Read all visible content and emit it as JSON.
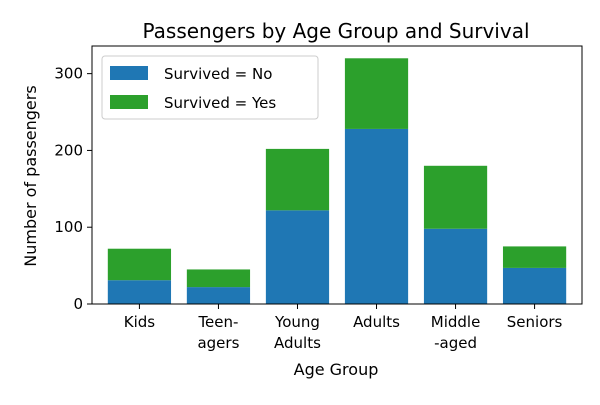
{
  "chart_data": {
    "type": "bar",
    "stacked": true,
    "title": "Passengers by Age Group and Survival",
    "xlabel": "Age Group",
    "ylabel": "Number of passengers",
    "categories": [
      [
        "Kids"
      ],
      [
        "Teen-",
        "agers"
      ],
      [
        "Young",
        "Adults"
      ],
      [
        "Adults"
      ],
      [
        "Middle",
        "-aged"
      ],
      [
        "Seniors"
      ]
    ],
    "series": [
      {
        "name": "Survived = No",
        "color": "#1f77b4",
        "values": [
          31,
          22,
          122,
          228,
          98,
          47
        ]
      },
      {
        "name": "Survived = Yes",
        "color": "#2ca02c",
        "values": [
          41,
          23,
          80,
          92,
          82,
          28
        ]
      }
    ],
    "ylim": [
      0,
      336
    ],
    "yticks": [
      0,
      100,
      200,
      300
    ],
    "grid": false,
    "legend_position": "top-left"
  }
}
